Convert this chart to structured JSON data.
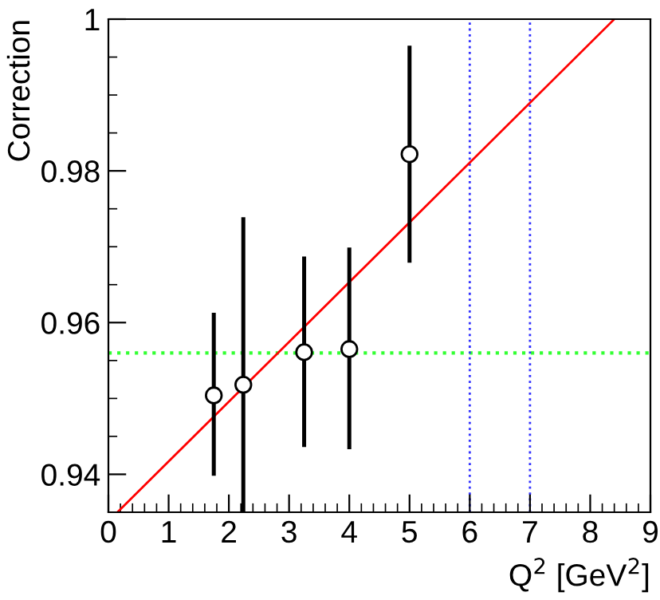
{
  "chart_data": {
    "type": "scatter",
    "xlabel": "Q$^{2}$ [GeV$^{2}$]",
    "ylabel": "Correction",
    "xlim": [
      0,
      9
    ],
    "ylim": [
      0.935,
      1
    ],
    "xticks": [
      0,
      1,
      2,
      3,
      4,
      5,
      6,
      7,
      8,
      9
    ],
    "yticks": [
      0.94,
      0.96,
      0.98,
      1
    ],
    "grid": false,
    "legend": false,
    "marker": "circle",
    "series": [
      {
        "color": "#000000",
        "x": [
          1.75,
          2.24,
          3.25,
          4.0,
          5.0
        ],
        "values": [
          0.9504,
          0.9518,
          0.9561,
          0.9565,
          0.9822
        ],
        "errors": [
          [
            0.9398,
            0.9613
          ],
          [
            0.935,
            0.9739
          ],
          [
            0.9436,
            0.9687
          ],
          [
            0.9433,
            0.9699
          ],
          [
            0.9679,
            0.9965
          ]
        ]
      },
      {
        "type": "line",
        "color": "#ff0000",
        "x": [
          0.15,
          8.4
        ],
        "values": [
          0.935,
          1.0
        ],
        "marker": "none",
        "line_style": "solid"
      }
    ],
    "ref_lines": [
      {
        "axis": "y",
        "value": 0.956,
        "color": "#33ff33",
        "line_style": "dotted"
      },
      {
        "axis": "x",
        "value": 6,
        "color": "#3333ff",
        "line_style": "dotted"
      },
      {
        "axis": "x",
        "value": 7,
        "color": "#3333ff",
        "line_style": "dotted"
      }
    ]
  }
}
